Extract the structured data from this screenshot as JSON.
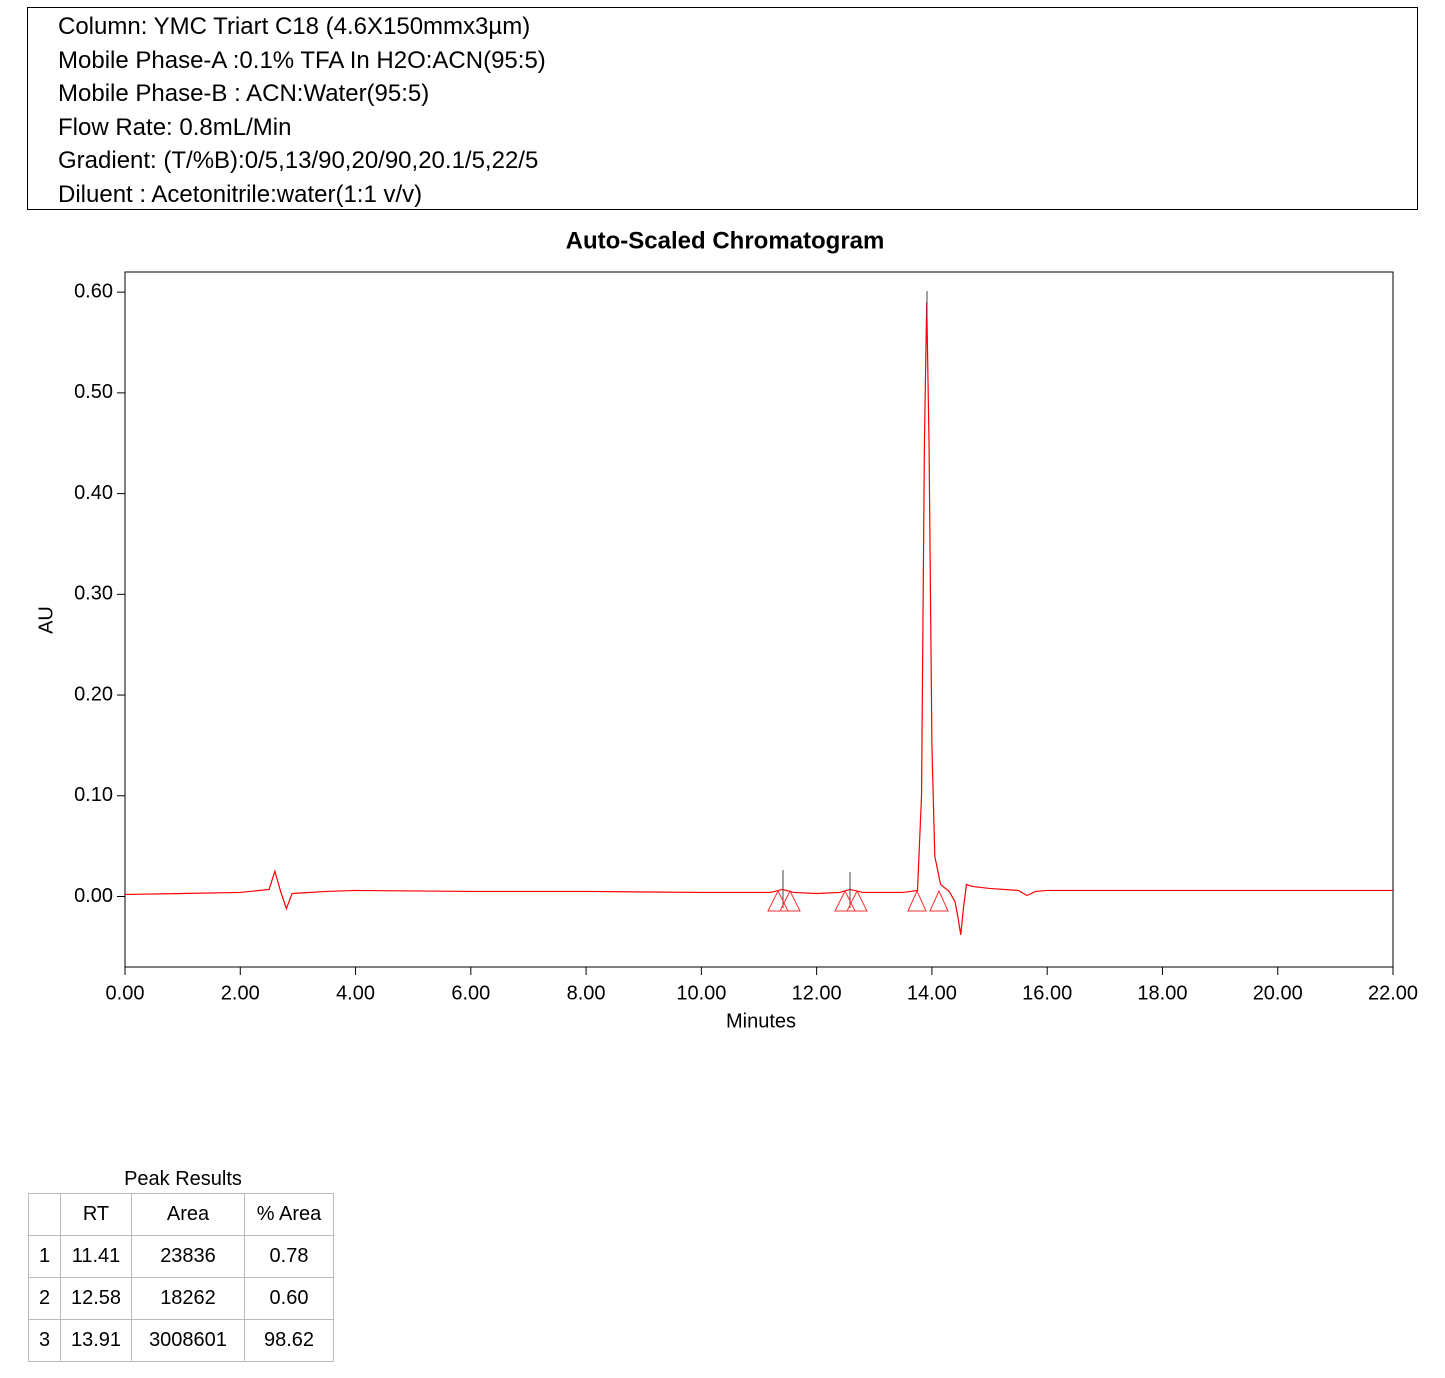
{
  "header": {
    "lines": [
      "Column: YMC Triart C18 (4.6X150mmx3µm)",
      "Mobile Phase-A :0.1% TFA In H2O:ACN(95:5)",
      "Mobile Phase-B : ACN:Water(95:5)",
      "Flow Rate: 0.8mL/Min",
      "Gradient: (T/%B):0/5,13/90,20/90,20.1/5,22/5",
      "Diluent : Acetonitrile:water(1:1 v/v)"
    ]
  },
  "chart_data": {
    "type": "line",
    "title": "Auto-Scaled Chromatogram",
    "x_label": "Minutes",
    "y_label": "AU",
    "x": [
      0,
      1,
      2,
      2.5,
      2.6,
      2.7,
      2.8,
      2.9,
      3.5,
      4,
      6,
      8,
      10,
      11.2,
      11.41,
      11.6,
      12.0,
      12.4,
      12.58,
      12.8,
      13.5,
      13.75,
      13.82,
      13.87,
      13.91,
      13.95,
      14.0,
      14.05,
      14.15,
      14.3,
      14.4,
      14.45,
      14.5,
      14.55,
      14.6,
      14.7,
      15,
      15.5,
      15.65,
      15.8,
      16,
      18,
      22
    ],
    "series": [
      {
        "name": "AU",
        "color": "#ff0000",
        "values": [
          0.002,
          0.003,
          0.004,
          0.007,
          0.025,
          0.005,
          -0.012,
          0.003,
          0.005,
          0.006,
          0.005,
          0.005,
          0.004,
          0.004,
          0.007,
          0.004,
          0.003,
          0.004,
          0.007,
          0.004,
          0.004,
          0.006,
          0.1,
          0.45,
          0.59,
          0.45,
          0.15,
          0.04,
          0.012,
          0.005,
          -0.005,
          -0.02,
          -0.038,
          -0.01,
          0.012,
          0.01,
          0.008,
          0.006,
          0.001,
          0.005,
          0.006,
          0.006,
          0.006
        ]
      }
    ],
    "xlim": [
      0,
      22
    ],
    "ylim": [
      -0.07,
      0.62
    ],
    "xticks": [
      {
        "value": 0,
        "label": "0.00"
      },
      {
        "value": 2,
        "label": "2.00"
      },
      {
        "value": 4,
        "label": "4.00"
      },
      {
        "value": 6,
        "label": "6.00"
      },
      {
        "value": 8,
        "label": "8.00"
      },
      {
        "value": 10,
        "label": "10.00"
      },
      {
        "value": 12,
        "label": "12.00"
      },
      {
        "value": 14,
        "label": "14.00"
      },
      {
        "value": 16,
        "label": "16.00"
      },
      {
        "value": 18,
        "label": "18.00"
      },
      {
        "value": 20,
        "label": "20.00"
      },
      {
        "value": 22,
        "label": "22.00"
      }
    ],
    "yticks": [
      {
        "value": 0,
        "label": "0.00"
      },
      {
        "value": 0.1,
        "label": "0.10"
      },
      {
        "value": 0.2,
        "label": "0.20"
      },
      {
        "value": 0.3,
        "label": "0.30"
      },
      {
        "value": 0.4,
        "label": "0.40"
      },
      {
        "value": 0.5,
        "label": "0.50"
      },
      {
        "value": 0.6,
        "label": "0.60"
      }
    ]
  },
  "table": {
    "title": "Peak Results",
    "header": [
      "RT",
      "Area",
      "% Area"
    ],
    "rows": [
      [
        "1",
        "11.41",
        "23836",
        "0.78"
      ],
      [
        "2",
        "12.58",
        "18262",
        "0.60"
      ],
      [
        "3",
        "13.91",
        "3008601",
        "98.62"
      ]
    ]
  }
}
